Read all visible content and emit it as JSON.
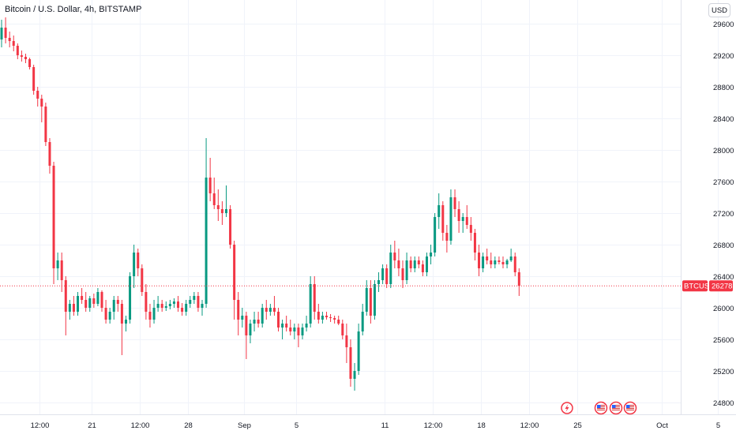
{
  "header": {
    "symbol_title": "Bitcoin / U.S. Dollar, 4h, BITSTAMP",
    "currency_button": "USD"
  },
  "price_tag": {
    "ticker": "BTCUSD",
    "price": "26278"
  },
  "colors": {
    "up": "#089981",
    "down": "#f23645",
    "grid": "#f0f3fa",
    "axis_text": "#131722",
    "price_line": "#f23645"
  },
  "event_icons": [
    "lightning-event-icon",
    "us-flag-icon",
    "us-flag-icon",
    "us-flag-icon"
  ],
  "chart_data": {
    "type": "candlestick",
    "title": "Bitcoin / U.S. Dollar, 4h, BITSTAMP",
    "interval": "4h",
    "xlabel": "",
    "ylabel": "",
    "ylim": [
      24650,
      29900
    ],
    "y_ticks": [
      24800,
      25200,
      25600,
      26000,
      26400,
      26800,
      27200,
      27600,
      28000,
      28400,
      28800,
      29200,
      29600
    ],
    "x_ticks": [
      {
        "label": "12:00",
        "bar": 9.5
      },
      {
        "label": "21",
        "bar": 22.5
      },
      {
        "label": "12:00",
        "bar": 34.5
      },
      {
        "label": "28",
        "bar": 46.5
      },
      {
        "label": "Sep",
        "bar": 60.5
      },
      {
        "label": "5",
        "bar": 73.5
      },
      {
        "label": "11",
        "bar": 95.5
      },
      {
        "label": "12:00",
        "bar": 107.5
      },
      {
        "label": "18",
        "bar": 119.5
      },
      {
        "label": "12:00",
        "bar": 131.5
      },
      {
        "label": "25",
        "bar": 143.5
      },
      {
        "label": "Oct",
        "bar": 164.5
      },
      {
        "label": "5",
        "bar": 178.5
      }
    ],
    "grid": true,
    "last_price": 26278,
    "ohlc": [
      [
        29400,
        29650,
        29300,
        29550
      ],
      [
        29550,
        29680,
        29350,
        29420
      ],
      [
        29420,
        29500,
        29300,
        29380
      ],
      [
        29380,
        29450,
        29250,
        29320
      ],
      [
        29320,
        29350,
        29150,
        29200
      ],
      [
        29200,
        29260,
        29120,
        29180
      ],
      [
        29180,
        29220,
        29100,
        29150
      ],
      [
        29150,
        29170,
        29020,
        29050
      ],
      [
        29050,
        29080,
        28700,
        28750
      ],
      [
        28750,
        28800,
        28550,
        28650
      ],
      [
        28650,
        28700,
        28350,
        28550
      ],
      [
        28550,
        28600,
        28050,
        28100
      ],
      [
        28100,
        28150,
        27700,
        27800
      ],
      [
        27800,
        27850,
        26300,
        26500
      ],
      [
        26500,
        26700,
        26350,
        26600
      ],
      [
        26600,
        26700,
        26200,
        26350
      ],
      [
        26350,
        26400,
        25650,
        25950
      ],
      [
        25950,
        26100,
        25850,
        26050
      ],
      [
        26050,
        26150,
        25900,
        25950
      ],
      [
        25950,
        26200,
        25900,
        26150
      ],
      [
        26150,
        26250,
        26050,
        26100
      ],
      [
        26100,
        26200,
        25950,
        26000
      ],
      [
        26000,
        26150,
        25950,
        26120
      ],
      [
        26120,
        26180,
        26000,
        26050
      ],
      [
        26050,
        26250,
        26020,
        26200
      ],
      [
        26200,
        26220,
        25950,
        26000
      ],
      [
        26000,
        26100,
        25800,
        25850
      ],
      [
        25850,
        26000,
        25800,
        25950
      ],
      [
        25950,
        26150,
        25850,
        26100
      ],
      [
        26100,
        26150,
        25950,
        26050
      ],
      [
        26050,
        26100,
        25400,
        25800
      ],
      [
        25800,
        25900,
        25700,
        25850
      ],
      [
        25850,
        26450,
        25800,
        26400
      ],
      [
        26400,
        26800,
        26250,
        26700
      ],
      [
        26700,
        26750,
        26400,
        26500
      ],
      [
        26500,
        26550,
        26150,
        26200
      ],
      [
        26200,
        26300,
        25850,
        25950
      ],
      [
        25950,
        26050,
        25750,
        25850
      ],
      [
        25850,
        26100,
        25800,
        26000
      ],
      [
        26000,
        26150,
        25950,
        26050
      ],
      [
        26050,
        26100,
        25950,
        26000
      ],
      [
        26000,
        26080,
        25960,
        26020
      ],
      [
        26020,
        26100,
        25980,
        26050
      ],
      [
        26050,
        26120,
        26000,
        26080
      ],
      [
        26080,
        26150,
        25950,
        26000
      ],
      [
        26000,
        26060,
        25900,
        25950
      ],
      [
        25950,
        26100,
        25900,
        26050
      ],
      [
        26050,
        26150,
        26000,
        26100
      ],
      [
        26100,
        26200,
        26050,
        26150
      ],
      [
        26150,
        26200,
        25950,
        26000
      ],
      [
        26000,
        26100,
        25900,
        26050
      ],
      [
        26050,
        28150,
        26000,
        27650
      ],
      [
        27650,
        27900,
        27350,
        27450
      ],
      [
        27450,
        27650,
        27250,
        27300
      ],
      [
        27300,
        27500,
        27100,
        27250
      ],
      [
        27250,
        27350,
        27050,
        27200
      ],
      [
        27200,
        27550,
        27150,
        27250
      ],
      [
        27250,
        27300,
        26750,
        26800
      ],
      [
        26800,
        26850,
        25850,
        26100
      ],
      [
        26100,
        26200,
        25650,
        25850
      ],
      [
        25850,
        26000,
        25750,
        25900
      ],
      [
        25900,
        25950,
        25350,
        25650
      ],
      [
        25650,
        25850,
        25550,
        25800
      ],
      [
        25800,
        25950,
        25700,
        25850
      ],
      [
        25850,
        25950,
        25750,
        25800
      ],
      [
        25800,
        26050,
        25750,
        26000
      ],
      [
        26000,
        26100,
        25850,
        25950
      ],
      [
        25950,
        26050,
        25900,
        26000
      ],
      [
        26000,
        26150,
        25900,
        25950
      ],
      [
        25950,
        26000,
        25700,
        25750
      ],
      [
        25750,
        25850,
        25600,
        25800
      ],
      [
        25800,
        25900,
        25700,
        25750
      ],
      [
        25750,
        25850,
        25650,
        25700
      ],
      [
        25700,
        25800,
        25600,
        25750
      ],
      [
        25750,
        25800,
        25500,
        25650
      ],
      [
        25650,
        25800,
        25600,
        25750
      ],
      [
        25750,
        25900,
        25700,
        25800
      ],
      [
        25800,
        26400,
        25750,
        26300
      ],
      [
        26300,
        26400,
        25850,
        25950
      ],
      [
        25950,
        26050,
        25800,
        25850
      ],
      [
        25850,
        25950,
        25800,
        25900
      ],
      [
        25900,
        25950,
        25850,
        25880
      ],
      [
        25880,
        25920,
        25820,
        25870
      ],
      [
        25870,
        25900,
        25800,
        25850
      ],
      [
        25850,
        25900,
        25780,
        25800
      ],
      [
        25800,
        25850,
        25600,
        25650
      ],
      [
        25650,
        25800,
        25300,
        25500
      ],
      [
        25500,
        25600,
        25000,
        25100
      ],
      [
        25100,
        25300,
        24950,
        25200
      ],
      [
        25200,
        25800,
        25150,
        25700
      ],
      [
        25700,
        26050,
        25650,
        25950
      ],
      [
        25950,
        26350,
        25900,
        26250
      ],
      [
        26250,
        26350,
        25800,
        25900
      ],
      [
        25900,
        26350,
        25850,
        26300
      ],
      [
        26300,
        26450,
        26200,
        26350
      ],
      [
        26350,
        26550,
        26300,
        26500
      ],
      [
        26500,
        26550,
        26250,
        26300
      ],
      [
        26300,
        26800,
        26250,
        26700
      ],
      [
        26700,
        26850,
        26500,
        26600
      ],
      [
        26600,
        26750,
        26400,
        26500
      ],
      [
        26500,
        26600,
        26250,
        26350
      ],
      [
        26350,
        26700,
        26300,
        26600
      ],
      [
        26600,
        26650,
        26450,
        26500
      ],
      [
        26500,
        26650,
        26450,
        26600
      ],
      [
        26600,
        26650,
        26500,
        26550
      ],
      [
        26550,
        26600,
        26400,
        26450
      ],
      [
        26450,
        26700,
        26400,
        26650
      ],
      [
        26650,
        26800,
        26550,
        26700
      ],
      [
        26700,
        27200,
        26650,
        27150
      ],
      [
        27150,
        27450,
        27000,
        27300
      ],
      [
        27300,
        27350,
        26850,
        26950
      ],
      [
        26950,
        27050,
        26700,
        26850
      ],
      [
        26850,
        27500,
        26800,
        27400
      ],
      [
        27400,
        27500,
        27150,
        27250
      ],
      [
        27250,
        27350,
        26950,
        27100
      ],
      [
        27100,
        27200,
        26950,
        27150
      ],
      [
        27150,
        27300,
        27000,
        27050
      ],
      [
        27050,
        27150,
        26850,
        26950
      ],
      [
        26950,
        27000,
        26600,
        26700
      ],
      [
        26700,
        26800,
        26400,
        26500
      ],
      [
        26500,
        26700,
        26450,
        26650
      ],
      [
        26650,
        26750,
        26550,
        26600
      ],
      [
        26600,
        26700,
        26500,
        26550
      ],
      [
        26550,
        26650,
        26500,
        26600
      ],
      [
        26600,
        26650,
        26550,
        26580
      ],
      [
        26580,
        26650,
        26500,
        26550
      ],
      [
        26550,
        26620,
        26500,
        26600
      ],
      [
        26600,
        26750,
        26580,
        26650
      ],
      [
        26650,
        26700,
        26400,
        26450
      ],
      [
        26450,
        26500,
        26150,
        26278
      ]
    ]
  }
}
